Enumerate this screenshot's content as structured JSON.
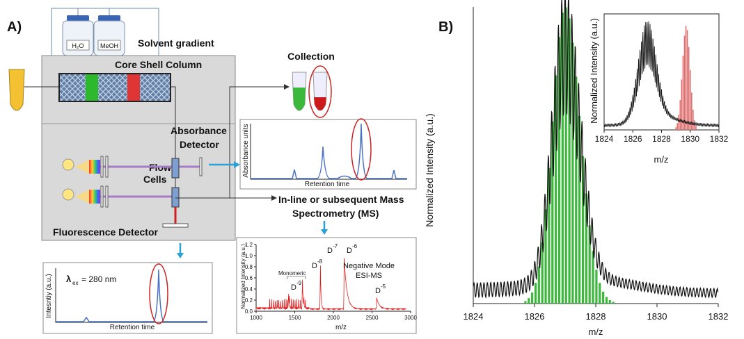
{
  "panel_a": {
    "label": "A)",
    "bottles": [
      "H₂O",
      "MeOH"
    ],
    "solvent_gradient": "Solvent gradient",
    "column": "Core Shell Column",
    "collection": "Collection",
    "absorbance_detector": [
      "Absorbance",
      "Detector"
    ],
    "flow_cells": [
      "Flow",
      "Cells"
    ],
    "fluorescence_detector": "Fluorescence Detector",
    "ms_label": [
      "In-line or subsequent Mass",
      "Spectrometry (MS)"
    ],
    "absorbance_plot": {
      "ylabel": "Absorbance units",
      "xlabel": "Retention time"
    },
    "fluorescence_plot": {
      "ylabel": "Intesntiy (a.u.)",
      "xlabel": "Retention time",
      "annotation": [
        "λ",
        "ex",
        "= 280 nm"
      ]
    },
    "ms_plot": {
      "ylabel": "Normalized Intensity (a.u.)",
      "xlabel": "m/z",
      "xlim": [
        1000,
        3000
      ],
      "xticks": [
        1000,
        1500,
        2000,
        2500,
        3000
      ],
      "ylim": [
        0,
        1.2
      ],
      "yticks": [
        {
          "value": 0,
          "label": "0.0"
        },
        0.2,
        0.4,
        0.6,
        0.8,
        {
          "value": 1,
          "label": "1.0"
        },
        1.2
      ],
      "legend": [
        "Negative Mode",
        "ESI-MS"
      ],
      "monomeric": "Monomeric",
      "peaks": [
        {
          "ion": "D",
          "charge": "-9"
        },
        {
          "ion": "D",
          "charge": "-8"
        },
        {
          "ion": "D",
          "charge": "-7"
        },
        {
          "ion": "D",
          "charge": "-6"
        },
        {
          "ion": "D",
          "charge": "-5"
        }
      ]
    }
  },
  "panel_b": {
    "label": "B)",
    "ylabel": "Normalized Intensity (a.u.)",
    "xlabel": "m/z",
    "xlim": [
      1824,
      1832
    ],
    "xticks": [
      1824,
      1826,
      1828,
      1830,
      1832
    ],
    "inset": {
      "ylabel": "Normalized Intensity (a.u.)",
      "xlabel": "m/z",
      "xlim": [
        1824,
        1832
      ],
      "xticks": [
        1824,
        1826,
        1828,
        1830,
        1832
      ]
    }
  }
}
